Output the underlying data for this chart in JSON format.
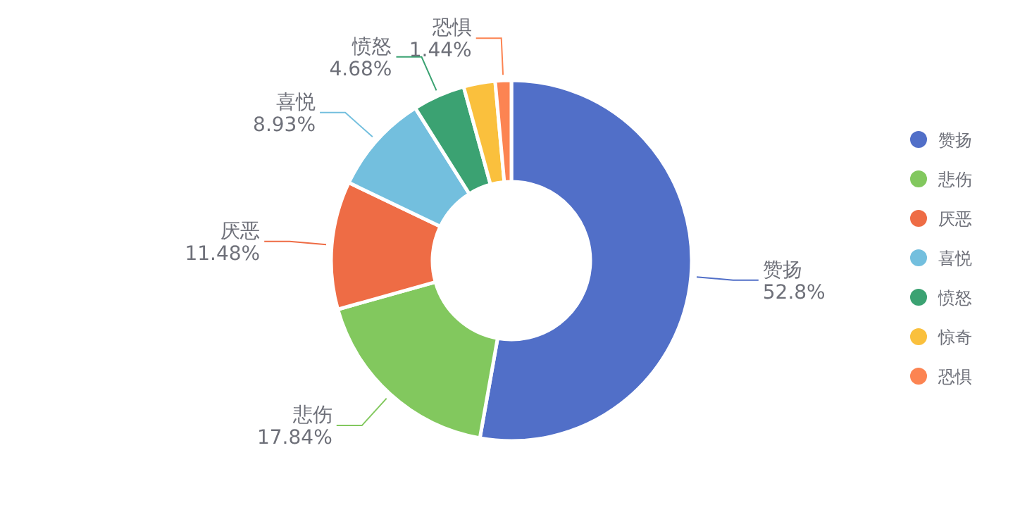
{
  "chart_data": {
    "type": "donut",
    "categories": [
      "赞扬",
      "悲伤",
      "厌恶",
      "喜悦",
      "愤怒",
      "惊奇",
      "恐惧"
    ],
    "values": [
      52.8,
      17.84,
      11.48,
      8.93,
      4.68,
      2.83,
      1.44
    ],
    "colors": [
      "#516fc8",
      "#82c85e",
      "#ee6c45",
      "#73bfde",
      "#3ba272",
      "#fac03d",
      "#fc8452"
    ],
    "value_labels": [
      "52.8%",
      "17.84%",
      "11.48%",
      "8.93%",
      "4.68%",
      null,
      "1.44%"
    ],
    "legend": "right"
  }
}
